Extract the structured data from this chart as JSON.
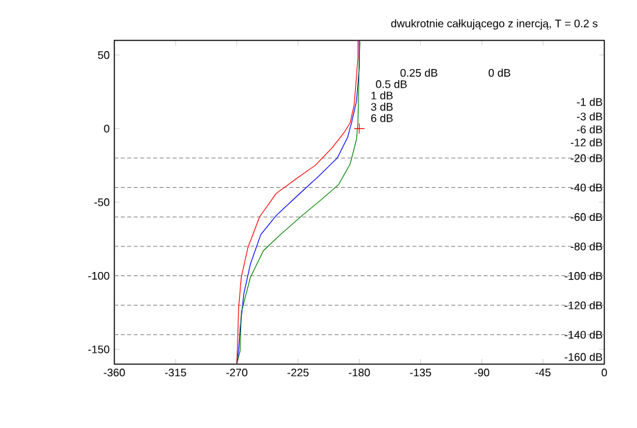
{
  "chart_data": {
    "type": "line",
    "title": "dwukrotnie całkującego z inercją, T = 0.2 s",
    "xlim": [
      -360,
      0
    ],
    "ylim": [
      -160,
      60
    ],
    "xticks": [
      -360,
      -315,
      -270,
      -225,
      -180,
      -135,
      -90,
      -45,
      0
    ],
    "yticks": [
      -150,
      -100,
      -50,
      0,
      50
    ],
    "series": [
      {
        "color": "#ff0000",
        "marker": "none",
        "x": [
          -270,
          -269.5,
          -268.6,
          -266.7,
          -261.9,
          -253.3,
          -241,
          -224.8,
          -212.4,
          -200,
          -191.4,
          -186.7,
          -183.8,
          -181,
          -181
        ],
        "values": [
          -160,
          -147,
          -121,
          -101,
          -81,
          -60,
          -44,
          -33,
          -25,
          -13,
          -3,
          4,
          16,
          48,
          60
        ]
      },
      {
        "color": "#0000ff",
        "marker": "none",
        "x": [
          -270,
          -268.6,
          -267.6,
          -264.8,
          -260,
          -252.4,
          -241,
          -224.8,
          -209.5,
          -196.2,
          -188.6,
          -185.7,
          -182,
          -180,
          -180
        ],
        "values": [
          -160,
          -150,
          -136,
          -112,
          -92,
          -72,
          -59,
          -45,
          -32,
          -20,
          -6,
          4,
          19,
          42,
          60
        ]
      },
      {
        "color": "#008000",
        "marker": "none",
        "x": [
          -270,
          -267.6,
          -266.7,
          -260,
          -250.5,
          -238,
          -221.9,
          -207.6,
          -195.2,
          -186.7,
          -182,
          -181,
          -180,
          -179.5
        ],
        "values": [
          -160,
          -151,
          -125,
          -101,
          -83,
          -72,
          -59,
          -48,
          -38,
          -24,
          -7,
          4,
          48,
          59
        ]
      },
      {
        "type": "scatter",
        "color": "#ff0000",
        "marker": "cross",
        "x": [
          -180
        ],
        "values": [
          0
        ]
      }
    ],
    "ref_lines": [
      {
        "axis": "y",
        "value": -20,
        "label": "-20 dB",
        "color": "#707070",
        "line_style": "dashed"
      },
      {
        "axis": "y",
        "value": -40,
        "label": "-40 dB",
        "color": "#707070",
        "line_style": "dashed"
      },
      {
        "axis": "y",
        "value": -60,
        "label": "-60 dB",
        "color": "#707070",
        "line_style": "dashed"
      },
      {
        "axis": "y",
        "value": -80,
        "label": "-80 dB",
        "color": "#707070",
        "line_style": "dashed"
      },
      {
        "axis": "y",
        "value": -100,
        "label": "-100 dB",
        "color": "#707070",
        "line_style": "dashed"
      },
      {
        "axis": "y",
        "value": -120,
        "label": "-120 dB",
        "color": "#707070",
        "line_style": "dashed"
      },
      {
        "axis": "y",
        "value": -140,
        "label": "-140 dB",
        "color": "#707070",
        "line_style": "dashed"
      }
    ],
    "annotations": [
      "0 dB",
      "0.25 dB",
      "0.5 dB",
      "1 dB",
      "3 dB",
      "6 dB",
      "-1 dB",
      "-3 dB",
      "-6 dB",
      "-12 dB",
      "-160 dB"
    ]
  }
}
